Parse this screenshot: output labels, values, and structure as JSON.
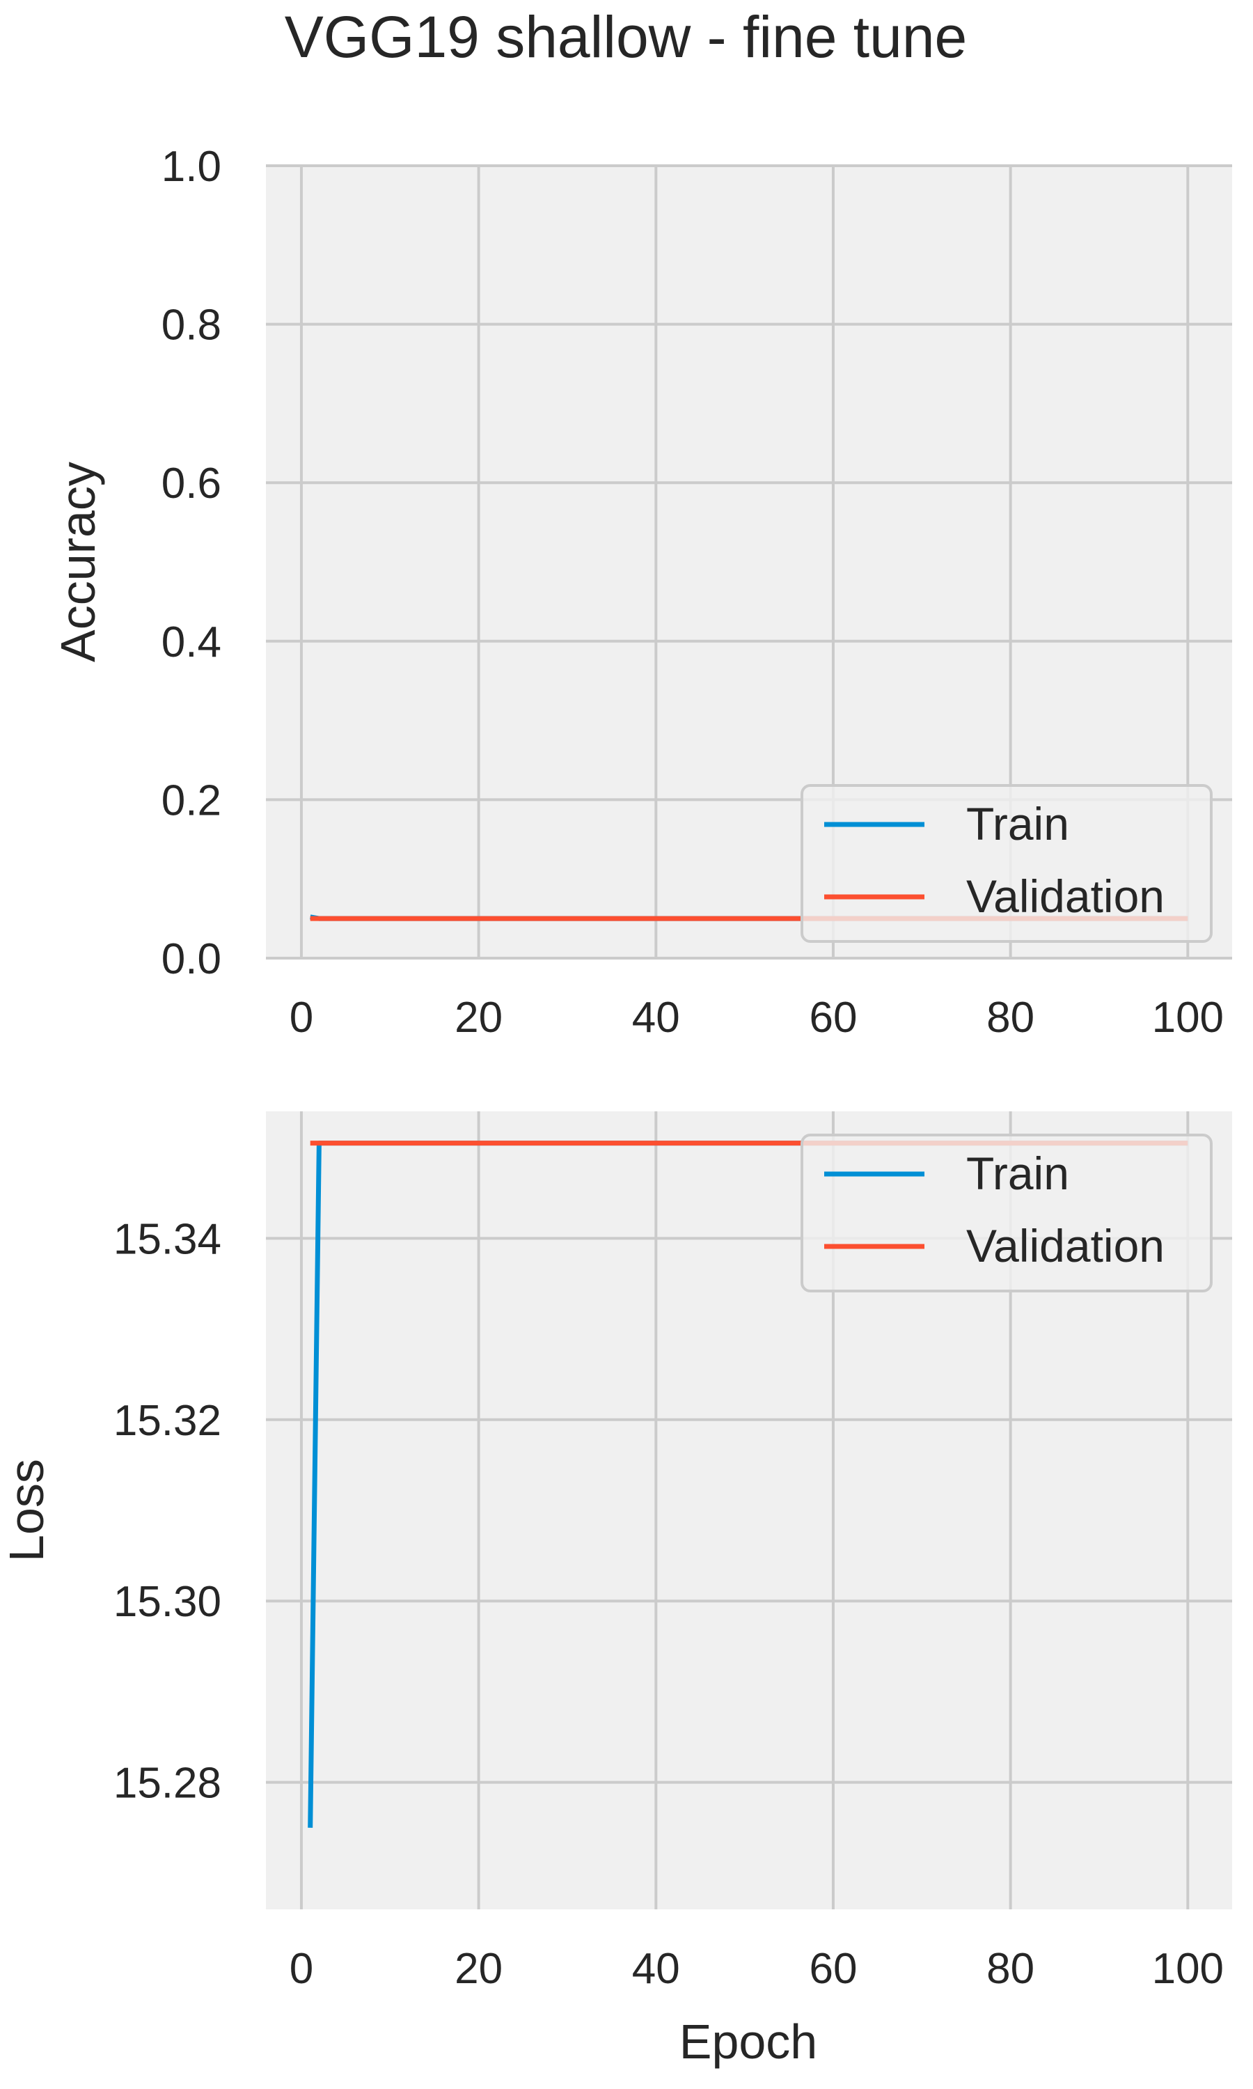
{
  "figure": {
    "title": "VGG19 shallow - fine tune"
  },
  "colors": {
    "background": "#ffffff",
    "axes_face": "#f0f0f0",
    "grid": "#cbcbcb",
    "text": "#262626",
    "train": "#008fd5",
    "validation": "#fc4f30"
  },
  "chart_data": [
    {
      "type": "line",
      "title": "",
      "xlabel": "",
      "ylabel": "Accuracy",
      "xlim": [
        -4,
        105
      ],
      "ylim": [
        0.0,
        1.0
      ],
      "xticks": [
        0,
        20,
        40,
        60,
        80,
        100
      ],
      "yticks": [
        0.0,
        0.2,
        0.4,
        0.6,
        0.8,
        1.0
      ],
      "xtick_labels": [
        "0",
        "20",
        "40",
        "60",
        "80",
        "100"
      ],
      "ytick_labels": [
        "0.0",
        "0.2",
        "0.4",
        "0.6",
        "0.8",
        "1.0"
      ],
      "grid": true,
      "legend_position": "lower right",
      "series": [
        {
          "name": "Train",
          "color": "#008fd5",
          "x": [
            1,
            2,
            100
          ],
          "y": [
            0.052,
            0.05,
            0.05
          ]
        },
        {
          "name": "Validation",
          "color": "#fc4f30",
          "x": [
            1,
            100
          ],
          "y": [
            0.05,
            0.05
          ]
        }
      ]
    },
    {
      "type": "line",
      "title": "",
      "xlabel": "Epoch",
      "ylabel": "Loss",
      "xlim": [
        -4,
        105
      ],
      "ylim": [
        15.266,
        15.354
      ],
      "xticks": [
        0,
        20,
        40,
        60,
        80,
        100
      ],
      "yticks": [
        15.28,
        15.3,
        15.32,
        15.34
      ],
      "xtick_labels": [
        "0",
        "20",
        "40",
        "60",
        "80",
        "100"
      ],
      "ytick_labels": [
        "15.28",
        "15.30",
        "15.32",
        "15.34"
      ],
      "grid": true,
      "legend_position": "upper right",
      "series": [
        {
          "name": "Train",
          "color": "#008fd5",
          "x": [
            1,
            2,
            100
          ],
          "y": [
            15.275,
            15.3505,
            15.3505
          ]
        },
        {
          "name": "Validation",
          "color": "#fc4f30",
          "x": [
            1,
            100
          ],
          "y": [
            15.3505,
            15.3505
          ]
        }
      ]
    }
  ]
}
